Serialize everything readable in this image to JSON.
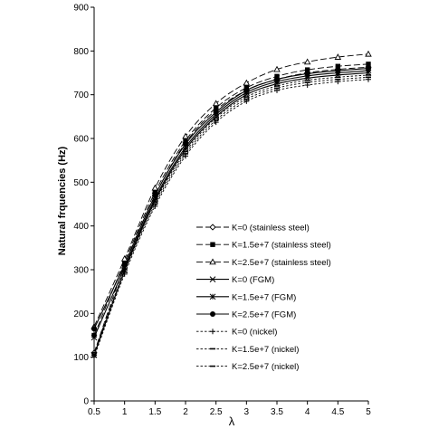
{
  "chart_data": {
    "type": "line",
    "title": "",
    "xlabel": "λ",
    "ylabel": "Natural frquencies (Hz)",
    "xlim": [
      0.5,
      5
    ],
    "ylim": [
      0,
      900
    ],
    "xticks": [
      "0.5",
      "1",
      "1.5",
      "2",
      "2.5",
      "3",
      "3.5",
      "4",
      "4.5",
      "5"
    ],
    "yticks": [
      "0",
      "100",
      "200",
      "300",
      "400",
      "500",
      "600",
      "700",
      "800",
      "900"
    ],
    "grid": false,
    "legend_position": "right-center",
    "x": [
      0.5,
      1,
      1.5,
      2,
      2.5,
      3,
      3.5,
      4,
      4.5,
      5
    ],
    "series": [
      {
        "name": "K=0 (stainless steel)",
        "line": "dash-long",
        "marker": "diamond-open",
        "values": [
          110,
          310,
          470,
          590,
          665,
          710,
          735,
          750,
          758,
          763
        ]
      },
      {
        "name": "K=1.5e+7 (stainless steel)",
        "line": "dash-long",
        "marker": "square-filled",
        "values": [
          150,
          318,
          477,
          595,
          670,
          716,
          742,
          757,
          765,
          770
        ]
      },
      {
        "name": "K=2.5e+7 (stainless steel)",
        "line": "dash-long",
        "marker": "triangle-open",
        "values": [
          170,
          325,
          487,
          605,
          680,
          727,
          758,
          775,
          786,
          793
        ]
      },
      {
        "name": "K=0 (FGM)",
        "line": "solid",
        "marker": "x",
        "values": [
          105,
          298,
          458,
          575,
          650,
          700,
          725,
          738,
          745,
          750
        ]
      },
      {
        "name": "K=1.5e+7 (FGM)",
        "line": "solid",
        "marker": "asterisk",
        "values": [
          145,
          305,
          463,
          580,
          655,
          705,
          730,
          743,
          750,
          755
        ]
      },
      {
        "name": "K=2.5e+7 (FGM)",
        "line": "solid",
        "marker": "circle-filled",
        "values": [
          165,
          312,
          470,
          587,
          660,
          710,
          735,
          748,
          755,
          760
        ]
      },
      {
        "name": "K=0 (nickel)",
        "line": "dash-short",
        "marker": "plus",
        "values": [
          100,
          290,
          445,
          560,
          637,
          685,
          710,
          722,
          730,
          735
        ]
      },
      {
        "name": "K=1.5e+7 (nickel)",
        "line": "dash-short",
        "marker": "dash",
        "values": [
          105,
          295,
          450,
          565,
          642,
          690,
          715,
          728,
          735,
          740
        ]
      },
      {
        "name": "K=2.5e+7 (nickel)",
        "line": "dash-short",
        "marker": "dash",
        "values": [
          110,
          300,
          455,
          570,
          647,
          695,
          720,
          733,
          740,
          745
        ]
      }
    ]
  }
}
